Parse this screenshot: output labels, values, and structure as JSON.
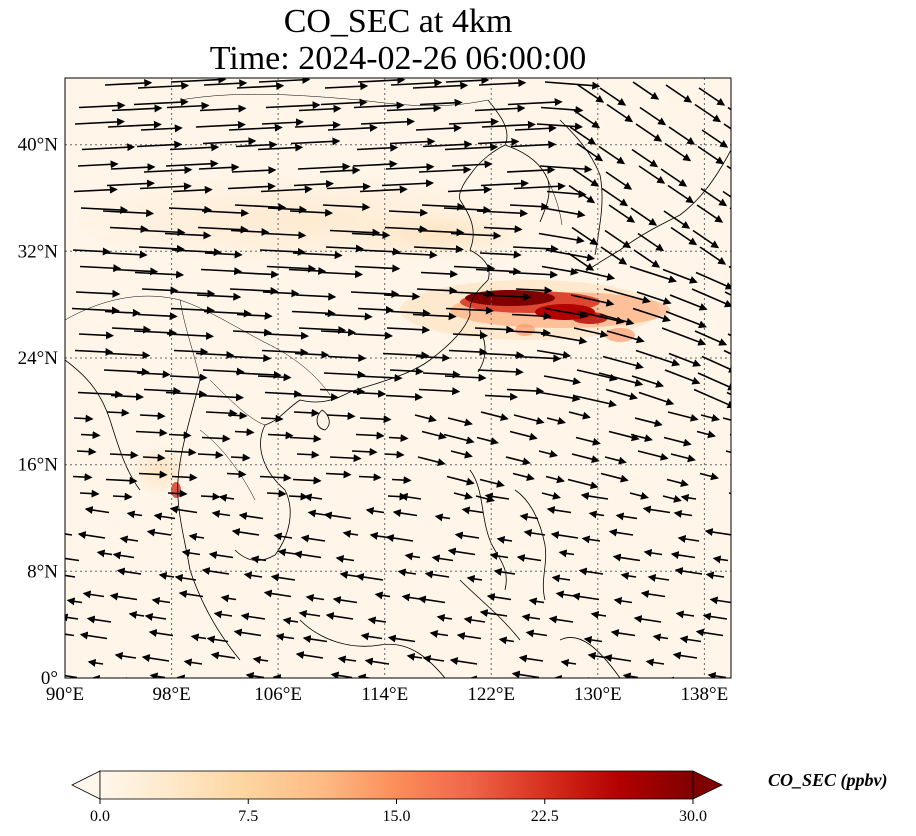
{
  "title": {
    "line1": "CO_SEC at 4km",
    "line2": "Time: 2024-02-26 06:00:00"
  },
  "map": {
    "lon_range": [
      90,
      140
    ],
    "lat_range": [
      0,
      45
    ],
    "lon_ticks": [
      "90°E",
      "98°E",
      "106°E",
      "114°E",
      "122°E",
      "130°E",
      "138°E"
    ],
    "lat_ticks": [
      "0°",
      "8°N",
      "16°N",
      "24°N",
      "32°N",
      "40°N"
    ],
    "gridlines": "dotted",
    "overlay": "wind-vectors",
    "colormap": "OrRd"
  },
  "colorbar": {
    "label": "CO_SEC (ppbv)",
    "ticks": [
      "0.0",
      "7.5",
      "15.0",
      "22.5",
      "30.0"
    ],
    "min": 0,
    "max": 30,
    "extend": "both",
    "colors": [
      "#fff7ec",
      "#fee8c8",
      "#fdd49e",
      "#fdbb84",
      "#fc8d59",
      "#ef6548",
      "#d7301f",
      "#b30000",
      "#7f0000"
    ]
  }
}
